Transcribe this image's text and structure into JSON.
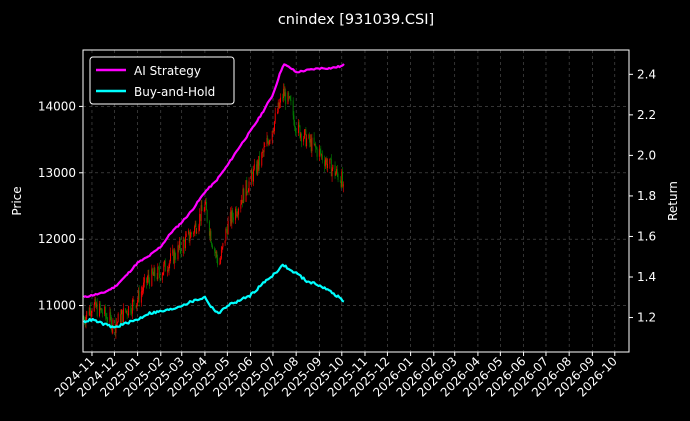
{
  "chart_data": {
    "type": "line",
    "title": "cnindex [931039.CSI]",
    "ylabel_left": "Price",
    "ylabel_right": "Return",
    "x_range": [
      "2024-10-20",
      "2026-10-20"
    ],
    "x_ticks": [
      "2024-11",
      "2024-12",
      "2025-01",
      "2025-02",
      "2025-03",
      "2025-04",
      "2025-05",
      "2025-06",
      "2025-07",
      "2025-08",
      "2025-09",
      "2025-10",
      "2025-11",
      "2025-12",
      "2026-01",
      "2026-02",
      "2026-03",
      "2026-04",
      "2026-05",
      "2026-06",
      "2026-07",
      "2026-08",
      "2026-09",
      "2026-10"
    ],
    "left_axis": {
      "ylim": [
        10300,
        14850
      ],
      "ticks": [
        11000,
        12000,
        13000,
        14000
      ]
    },
    "right_axis": {
      "ylim": [
        1.03,
        2.52
      ],
      "ticks": [
        1.2,
        1.4,
        1.6,
        1.8,
        2.0,
        2.2,
        2.4
      ]
    },
    "grid": true,
    "legend": {
      "position": "top-left"
    },
    "colors": {
      "background": "#000000",
      "ai_strategy": "#ff00ff",
      "buy_and_hold": "#00ffff",
      "candle_up": "#ff0000",
      "candle_down": "#008000"
    },
    "series": [
      {
        "name": "AI Strategy",
        "axis": "right",
        "points": [
          [
            "2024-10-21",
            1.3
          ],
          [
            "2024-11-01",
            1.31
          ],
          [
            "2024-11-15",
            1.32
          ],
          [
            "2024-12-01",
            1.35
          ],
          [
            "2024-12-15",
            1.4
          ],
          [
            "2025-01-01",
            1.47
          ],
          [
            "2025-01-15",
            1.5
          ],
          [
            "2025-02-01",
            1.55
          ],
          [
            "2025-02-15",
            1.62
          ],
          [
            "2025-03-01",
            1.67
          ],
          [
            "2025-03-15",
            1.73
          ],
          [
            "2025-04-01",
            1.82
          ],
          [
            "2025-04-15",
            1.87
          ],
          [
            "2025-05-01",
            1.95
          ],
          [
            "2025-05-15",
            2.03
          ],
          [
            "2025-06-01",
            2.12
          ],
          [
            "2025-06-15",
            2.2
          ],
          [
            "2025-07-01",
            2.3
          ],
          [
            "2025-07-10",
            2.4
          ],
          [
            "2025-07-15",
            2.45
          ],
          [
            "2025-07-25",
            2.43
          ],
          [
            "2025-08-01",
            2.41
          ],
          [
            "2025-08-15",
            2.42
          ],
          [
            "2025-09-01",
            2.43
          ],
          [
            "2025-09-15",
            2.43
          ],
          [
            "2025-10-01",
            2.44
          ],
          [
            "2025-10-05",
            2.45
          ]
        ]
      },
      {
        "name": "Buy-and-Hold",
        "axis": "right",
        "points": [
          [
            "2024-10-21",
            1.18
          ],
          [
            "2024-11-01",
            1.19
          ],
          [
            "2024-11-15",
            1.17
          ],
          [
            "2024-12-01",
            1.15
          ],
          [
            "2024-12-15",
            1.17
          ],
          [
            "2025-01-01",
            1.19
          ],
          [
            "2025-01-15",
            1.22
          ],
          [
            "2025-02-01",
            1.23
          ],
          [
            "2025-02-15",
            1.24
          ],
          [
            "2025-03-01",
            1.26
          ],
          [
            "2025-03-15",
            1.28
          ],
          [
            "2025-04-01",
            1.3
          ],
          [
            "2025-04-10",
            1.25
          ],
          [
            "2025-04-20",
            1.22
          ],
          [
            "2025-05-01",
            1.26
          ],
          [
            "2025-05-15",
            1.28
          ],
          [
            "2025-06-01",
            1.31
          ],
          [
            "2025-06-15",
            1.36
          ],
          [
            "2025-07-01",
            1.41
          ],
          [
            "2025-07-15",
            1.46
          ],
          [
            "2025-07-25",
            1.43
          ],
          [
            "2025-08-01",
            1.42
          ],
          [
            "2025-08-15",
            1.38
          ],
          [
            "2025-09-01",
            1.36
          ],
          [
            "2025-09-15",
            1.33
          ],
          [
            "2025-10-01",
            1.29
          ],
          [
            "2025-10-05",
            1.27
          ]
        ]
      },
      {
        "name": "Price",
        "axis": "left",
        "kind": "candlestick",
        "points": [
          [
            "2024-10-21",
            10800
          ],
          [
            "2024-11-01",
            11000
          ],
          [
            "2024-11-15",
            10900
          ],
          [
            "2024-12-01",
            10700
          ],
          [
            "2024-12-15",
            10900
          ],
          [
            "2025-01-01",
            11100
          ],
          [
            "2025-01-15",
            11400
          ],
          [
            "2025-02-01",
            11500
          ],
          [
            "2025-02-15",
            11700
          ],
          [
            "2025-03-01",
            11900
          ],
          [
            "2025-03-15",
            12100
          ],
          [
            "2025-04-01",
            12500
          ],
          [
            "2025-04-10",
            12000
          ],
          [
            "2025-04-20",
            11600
          ],
          [
            "2025-05-01",
            12200
          ],
          [
            "2025-05-15",
            12500
          ],
          [
            "2025-06-01",
            12900
          ],
          [
            "2025-06-15",
            13200
          ],
          [
            "2025-07-01",
            13700
          ],
          [
            "2025-07-15",
            14200
          ],
          [
            "2025-07-25",
            14000
          ],
          [
            "2025-08-01",
            13700
          ],
          [
            "2025-08-15",
            13500
          ],
          [
            "2025-09-01",
            13300
          ],
          [
            "2025-09-15",
            13100
          ],
          [
            "2025-10-01",
            12900
          ],
          [
            "2025-10-05",
            12500
          ]
        ]
      }
    ]
  }
}
